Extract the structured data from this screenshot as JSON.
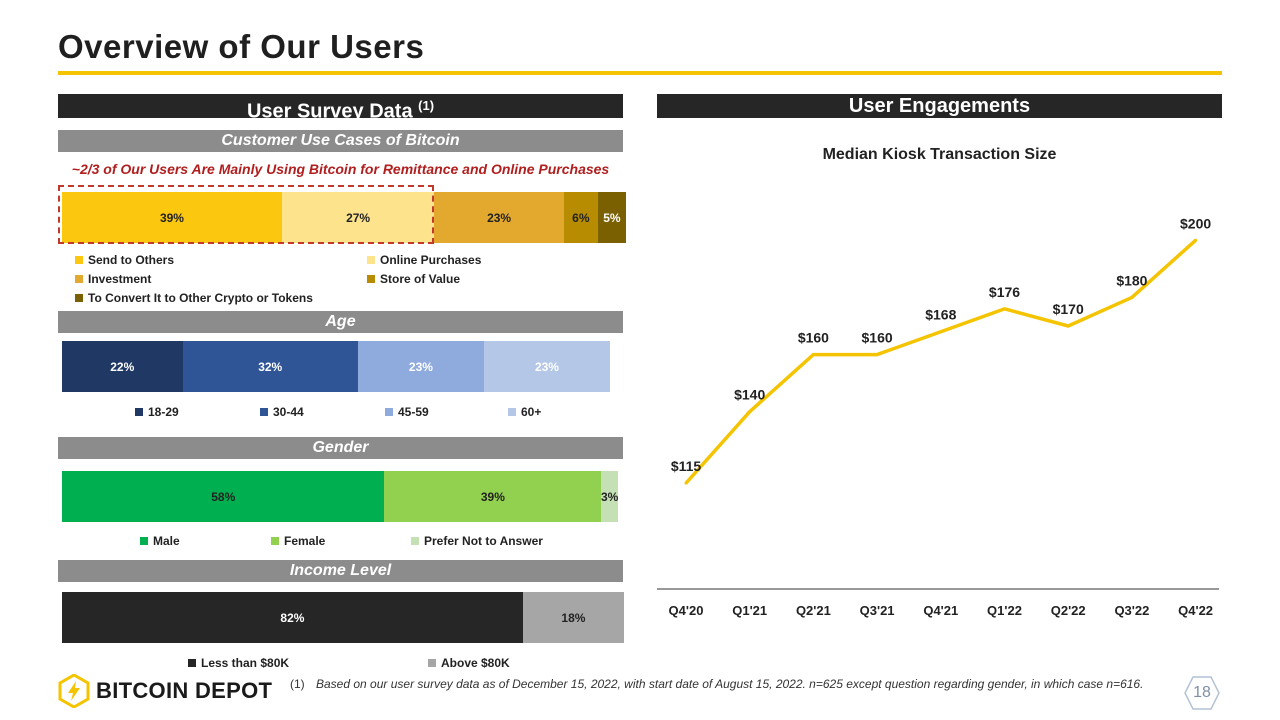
{
  "page": {
    "title": "Overview of Our Users",
    "page_number": "18"
  },
  "left": {
    "header": "User Survey Data",
    "header_sup": "(1)"
  },
  "right": {
    "header": "User Engagements"
  },
  "use_cases": {
    "title": "Customer Use Cases of Bitcoin",
    "tagline": "~2/3 of Our Users Are Mainly Using Bitcoin for Remittance and Online Purchases",
    "segments": [
      {
        "name": "Send to Others",
        "value": 39,
        "label": "39%",
        "color": "#fcc70f"
      },
      {
        "name": "Online Purchases",
        "value": 27,
        "label": "27%",
        "color": "#fde38c"
      },
      {
        "name": "Investment",
        "value": 23,
        "label": "23%",
        "color": "#e2a92e"
      },
      {
        "name": "Store of Value",
        "value": 6,
        "label": "6%",
        "color": "#b88c00"
      },
      {
        "name": "To Convert It to Other Crypto or Tokens",
        "value": 5,
        "label": "5%",
        "color": "#7a6000"
      }
    ]
  },
  "age": {
    "title": "Age",
    "segments": [
      {
        "name": "18-29",
        "value": 22,
        "label": "22%",
        "color": "#1f3864"
      },
      {
        "name": "30-44",
        "value": 32,
        "label": "32%",
        "color": "#2f5597"
      },
      {
        "name": "45-59",
        "value": 23,
        "label": "23%",
        "color": "#8faadc"
      },
      {
        "name": "60+",
        "value": 23,
        "label": "23%",
        "color": "#b4c7e7"
      }
    ]
  },
  "gender": {
    "title": "Gender",
    "segments": [
      {
        "name": "Male",
        "value": 58,
        "label": "58%",
        "color": "#00b050"
      },
      {
        "name": "Female",
        "value": 39,
        "label": "39%",
        "color": "#92d050"
      },
      {
        "name": "Prefer Not to Answer",
        "value": 3,
        "label": "3%",
        "color": "#c5e0b4"
      }
    ]
  },
  "income": {
    "title": "Income Level",
    "segments": [
      {
        "name": "Less than $80K",
        "value": 82,
        "label": "82%",
        "color": "#262626"
      },
      {
        "name": "Above $80K",
        "value": 18,
        "label": "18%",
        "color": "#a6a6a6"
      }
    ]
  },
  "chart_data": {
    "type": "line",
    "title": "Median Kiosk Transaction Size",
    "categories": [
      "Q4'20",
      "Q1'21",
      "Q2'21",
      "Q3'21",
      "Q4'21",
      "Q1'22",
      "Q2'22",
      "Q3'22",
      "Q4'22"
    ],
    "values": [
      115,
      140,
      160,
      160,
      168,
      176,
      170,
      180,
      200
    ],
    "labels": [
      "$115",
      "$140",
      "$160",
      "$160",
      "$168",
      "$176",
      "$170",
      "$180",
      "$200"
    ],
    "line_color": "#f5c400",
    "ylim": [
      100,
      205
    ]
  },
  "brand": {
    "name": "BITCOIN DEPOT",
    "color": "#f5c400"
  },
  "footnote": {
    "marker": "(1)",
    "text": "Based on our user survey data as of December 15, 2022, with start date of August 15, 2022. n=625 except question regarding gender, in which case n=616."
  }
}
